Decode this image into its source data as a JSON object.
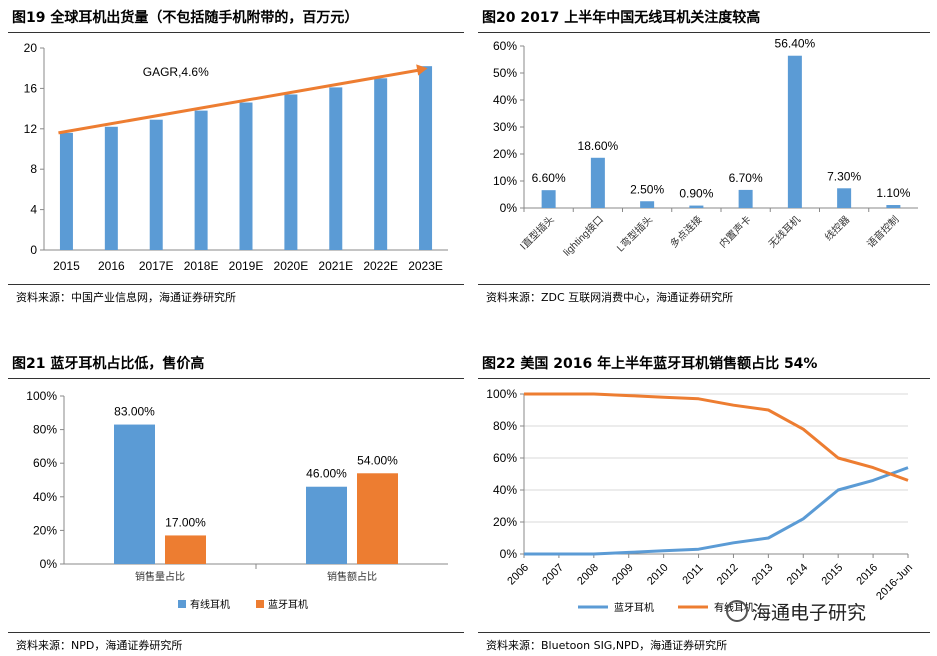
{
  "panels": [
    {
      "title": "图19 全球耳机出货量（不包括随手机附带的，百万元）",
      "source": "资料来源：中国产业信息网，海通证券研究所"
    },
    {
      "title": "图20 2017 上半年中国无线耳机关注度较高",
      "source": "资料来源：ZDC 互联网消费中心，海通证券研究所"
    },
    {
      "title": "图21 蓝牙耳机占比低，售价高",
      "source": "资料来源：NPD，海通证券研究所"
    },
    {
      "title": "图22 美国 2016 年上半年蓝牙耳机销售额占比 54%",
      "source": "资料来源：Bluetoon SIG,NPD，海通证券研究所"
    }
  ],
  "watermark": "海通电子研究",
  "colors": {
    "blue": "#5B9BD5",
    "orange": "#ED7D31",
    "axis": "#888888",
    "grid": "#D9D9D9"
  },
  "chart_data": [
    {
      "type": "bar",
      "categories": [
        "2015",
        "2016",
        "2017E",
        "2018E",
        "2019E",
        "2020E",
        "2021E",
        "2022E",
        "2023E"
      ],
      "values": [
        11.6,
        12.2,
        12.9,
        13.8,
        14.6,
        15.4,
        16.1,
        17.0,
        18.2
      ],
      "ylim": [
        0,
        20
      ],
      "yticks": [
        "0",
        "4",
        "8",
        "12",
        "16",
        "20"
      ],
      "annotation": "GAGR,4.6%",
      "trend": [
        11.6,
        18.0
      ]
    },
    {
      "type": "bar",
      "categories": [
        "Ⅰ直型插头",
        "lighting接口",
        "L弯型插头",
        "多点连接",
        "内置声卡",
        "无线耳机",
        "线控器",
        "语音控制"
      ],
      "values": [
        6.6,
        18.6,
        2.5,
        0.9,
        6.7,
        56.4,
        7.3,
        1.1
      ],
      "labels": [
        "6.60%",
        "18.60%",
        "2.50%",
        "0.90%",
        "6.70%",
        "56.40%",
        "7.30%",
        "1.10%"
      ],
      "ylim": [
        0,
        60
      ],
      "yticks": [
        "0%",
        "10%",
        "20%",
        "30%",
        "40%",
        "50%",
        "60%"
      ]
    },
    {
      "type": "bar",
      "categories": [
        "销售量占比",
        "销售额占比"
      ],
      "series": [
        {
          "name": "有线耳机",
          "values": [
            83,
            46
          ],
          "labels": [
            "83.00%",
            "46.00%"
          ]
        },
        {
          "name": "蓝牙耳机",
          "values": [
            17,
            54
          ],
          "labels": [
            "17.00%",
            "54.00%"
          ]
        }
      ],
      "ylim": [
        0,
        100
      ],
      "yticks": [
        "0%",
        "20%",
        "40%",
        "60%",
        "80%",
        "100%"
      ],
      "legend": "bottom"
    },
    {
      "type": "line",
      "x": [
        "2006",
        "2007",
        "2008",
        "2009",
        "2010",
        "2011",
        "2012",
        "2013",
        "2014",
        "2015",
        "2016",
        "2016-Jun"
      ],
      "series": [
        {
          "name": "蓝牙耳机",
          "values": [
            0,
            0,
            0,
            1,
            2,
            3,
            7,
            10,
            22,
            40,
            46,
            54
          ]
        },
        {
          "name": "有线耳机",
          "values": [
            100,
            100,
            100,
            99,
            98,
            97,
            93,
            90,
            78,
            60,
            54,
            46
          ]
        }
      ],
      "ylim": [
        0,
        100
      ],
      "yticks": [
        "0%",
        "20%",
        "40%",
        "60%",
        "80%",
        "100%"
      ],
      "legend": "bottom"
    }
  ]
}
